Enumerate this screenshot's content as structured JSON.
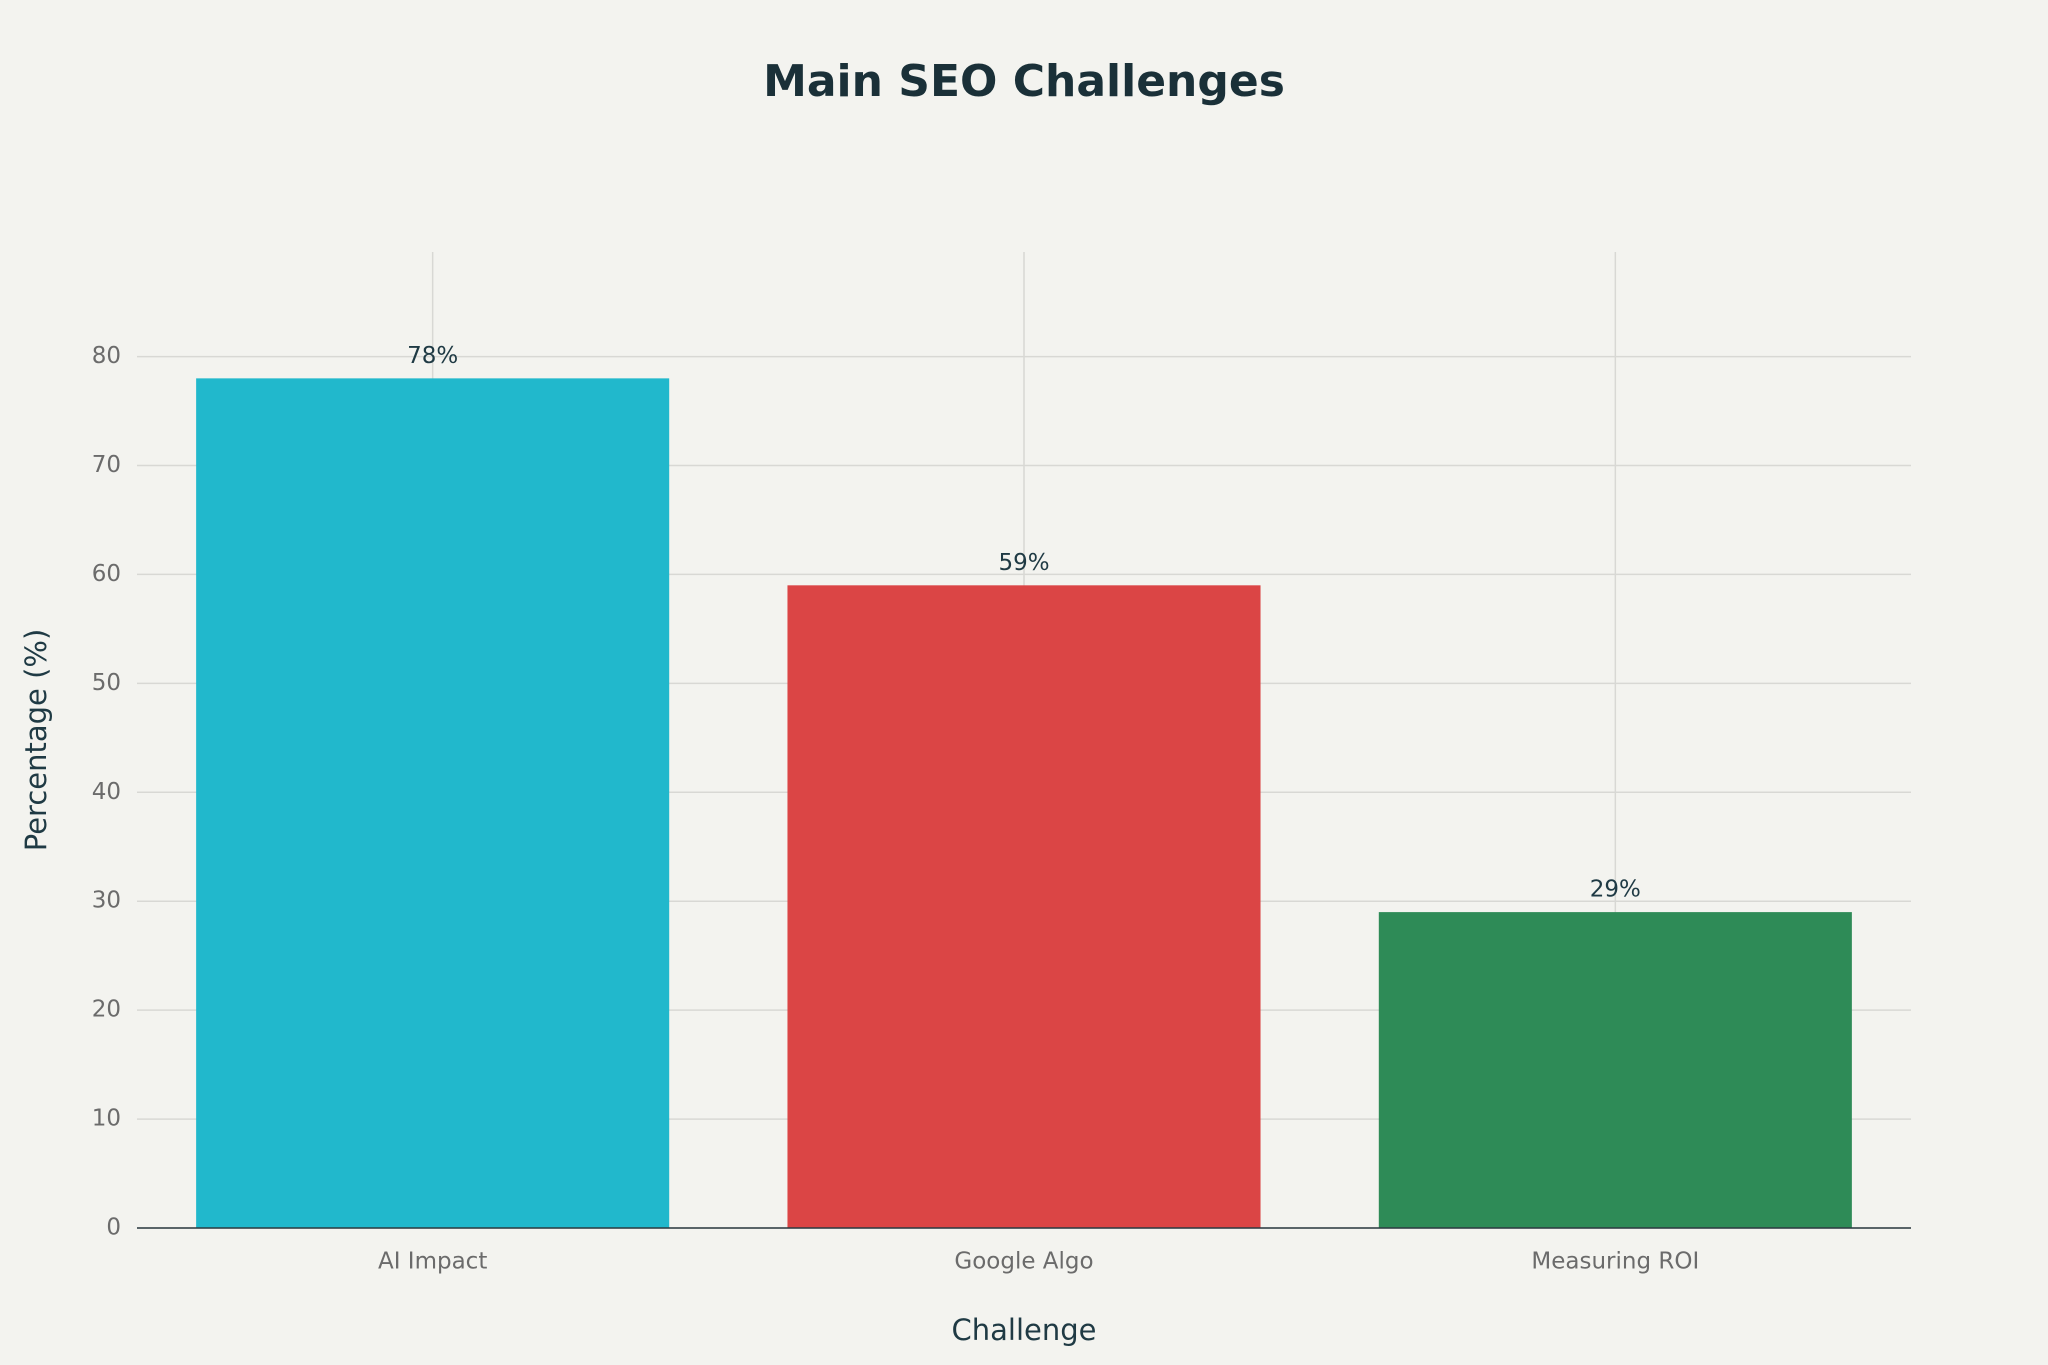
{
  "chart_data": {
    "type": "bar",
    "title": "Main SEO Challenges",
    "x_label": "Challenge",
    "y_label": "Percentage (%)",
    "categories": [
      "AI Impact",
      "Google Algo",
      "Measuring ROI"
    ],
    "values": [
      78,
      59,
      29
    ],
    "value_labels": [
      "78%",
      "59%",
      "29%"
    ],
    "colors": [
      "#21b8cc",
      "#db4545",
      "#2e8b57"
    ],
    "ylim": [
      0,
      89.6
    ],
    "yticks": [
      0,
      10,
      20,
      30,
      40,
      50,
      60,
      70,
      80
    ],
    "grid": true
  }
}
